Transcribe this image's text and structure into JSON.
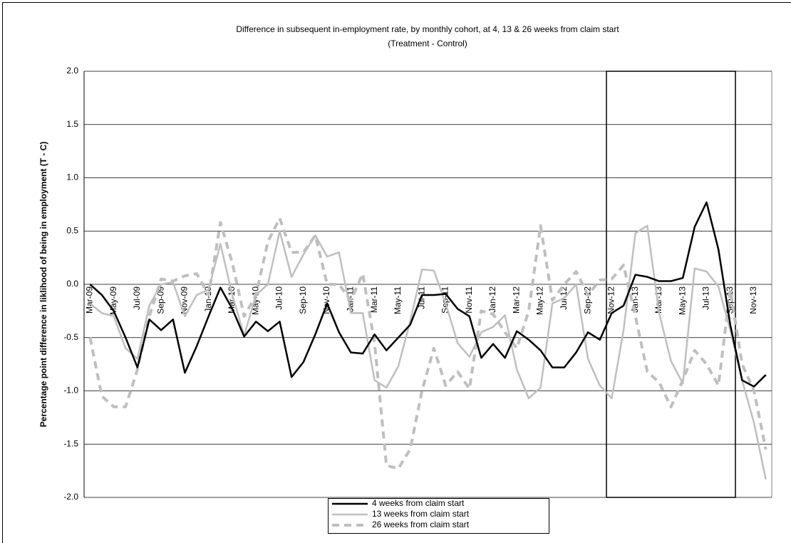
{
  "chart_data": {
    "type": "line",
    "title": "Difference in subsequent in-employment rate, by monthly cohort, at 4, 13 & 26 weeks from claim start",
    "subtitle": "(Treatment - Control)",
    "y_label": "Percentage point difference in liklihood of being in employment (T - C)",
    "categories": [
      "Mar-09",
      null,
      "May-09",
      null,
      "Jul-09",
      null,
      "Sep-09",
      null,
      "Nov-09",
      null,
      "Jan-10",
      null,
      "Mar-10",
      null,
      "May-10",
      null,
      "Jul-10",
      null,
      "Sep-10",
      null,
      "Nov-10",
      null,
      "Jan-11",
      null,
      "Mar-11",
      null,
      "May-11",
      null,
      "Jul-11",
      null,
      "Sep-11",
      null,
      "Nov-11",
      null,
      "Jan-12",
      null,
      "Mar-12",
      null,
      "May-12",
      null,
      "Jul-12",
      null,
      "Sep-12",
      null,
      "Nov-12",
      null,
      "Jan-13",
      null,
      "Mar-13",
      null,
      "May-13",
      null,
      "Jul-13",
      null,
      "Sep-13",
      null,
      "Nov-13",
      null
    ],
    "series": [
      {
        "name": "4 weeks from claim start",
        "color": "#000000",
        "dash": false,
        "values": [
          0.0,
          -0.1,
          -0.25,
          -0.5,
          -0.78,
          -0.33,
          -0.43,
          -0.33,
          -0.83,
          -0.58,
          -0.3,
          -0.03,
          -0.23,
          -0.49,
          -0.35,
          -0.44,
          -0.35,
          -0.87,
          -0.73,
          -0.47,
          -0.18,
          -0.45,
          -0.64,
          -0.65,
          -0.47,
          -0.62,
          -0.5,
          -0.38,
          -0.1,
          -0.1,
          -0.09,
          -0.23,
          -0.3,
          -0.69,
          -0.56,
          -0.69,
          -0.44,
          -0.52,
          -0.62,
          -0.78,
          -0.78,
          -0.64,
          -0.45,
          -0.52,
          -0.27,
          -0.2,
          0.09,
          0.07,
          0.03,
          0.03,
          0.06,
          0.54,
          0.77,
          0.33,
          -0.38,
          -0.9,
          -0.96,
          -0.85
        ]
      },
      {
        "name": "13 weeks from claim start",
        "color": "#bfbfbf",
        "dash": false,
        "values": [
          -0.18,
          -0.27,
          -0.3,
          -0.6,
          -0.7,
          -0.2,
          0.0,
          0.02,
          -0.3,
          -0.1,
          -0.05,
          0.38,
          -0.1,
          -0.48,
          -0.1,
          0.0,
          0.5,
          0.07,
          0.28,
          0.46,
          0.26,
          0.3,
          -0.27,
          -0.27,
          -0.9,
          -0.97,
          -0.77,
          -0.35,
          0.14,
          0.13,
          -0.18,
          -0.55,
          -0.68,
          -0.45,
          -0.4,
          -0.29,
          -0.8,
          -1.07,
          -0.97,
          -0.18,
          -0.13,
          0.0,
          -0.7,
          -0.95,
          -1.07,
          -0.43,
          0.48,
          0.55,
          -0.27,
          -0.72,
          -0.93,
          0.15,
          0.12,
          -0.02,
          -0.43,
          -0.9,
          -1.3,
          -1.83
        ]
      },
      {
        "name": "26 weeks from claim start",
        "color": "#bfbfbf",
        "dash": true,
        "values": [
          -0.5,
          -1.05,
          -1.15,
          -1.15,
          -0.8,
          -0.3,
          0.05,
          0.03,
          0.08,
          0.1,
          -0.1,
          0.58,
          0.2,
          -0.3,
          -0.1,
          0.4,
          0.62,
          0.3,
          0.3,
          0.46,
          0.0,
          0.0,
          -0.15,
          0.1,
          -0.55,
          -1.7,
          -1.73,
          -1.55,
          -1.0,
          -0.6,
          -0.95,
          -0.82,
          -0.98,
          -0.25,
          -0.28,
          -0.45,
          -0.6,
          -0.25,
          0.55,
          -0.15,
          0.0,
          0.12,
          -0.1,
          0.04,
          0.05,
          0.18,
          -0.3,
          -0.82,
          -0.92,
          -1.15,
          -0.9,
          -0.62,
          -0.75,
          -0.95,
          -0.05,
          -0.75,
          -1.0,
          -1.55
        ]
      }
    ],
    "ylim": [
      -2,
      2
    ],
    "yticks": [
      {
        "value": -2,
        "label": "-2.0"
      },
      -1.5,
      {
        "value": -1,
        "label": "-1.0"
      },
      -0.5,
      {
        "value": 0,
        "label": "0.0"
      },
      0.5,
      {
        "value": 1,
        "label": "1.0"
      },
      1.5,
      {
        "value": 2,
        "label": "2.0"
      }
    ],
    "grid": true
  }
}
